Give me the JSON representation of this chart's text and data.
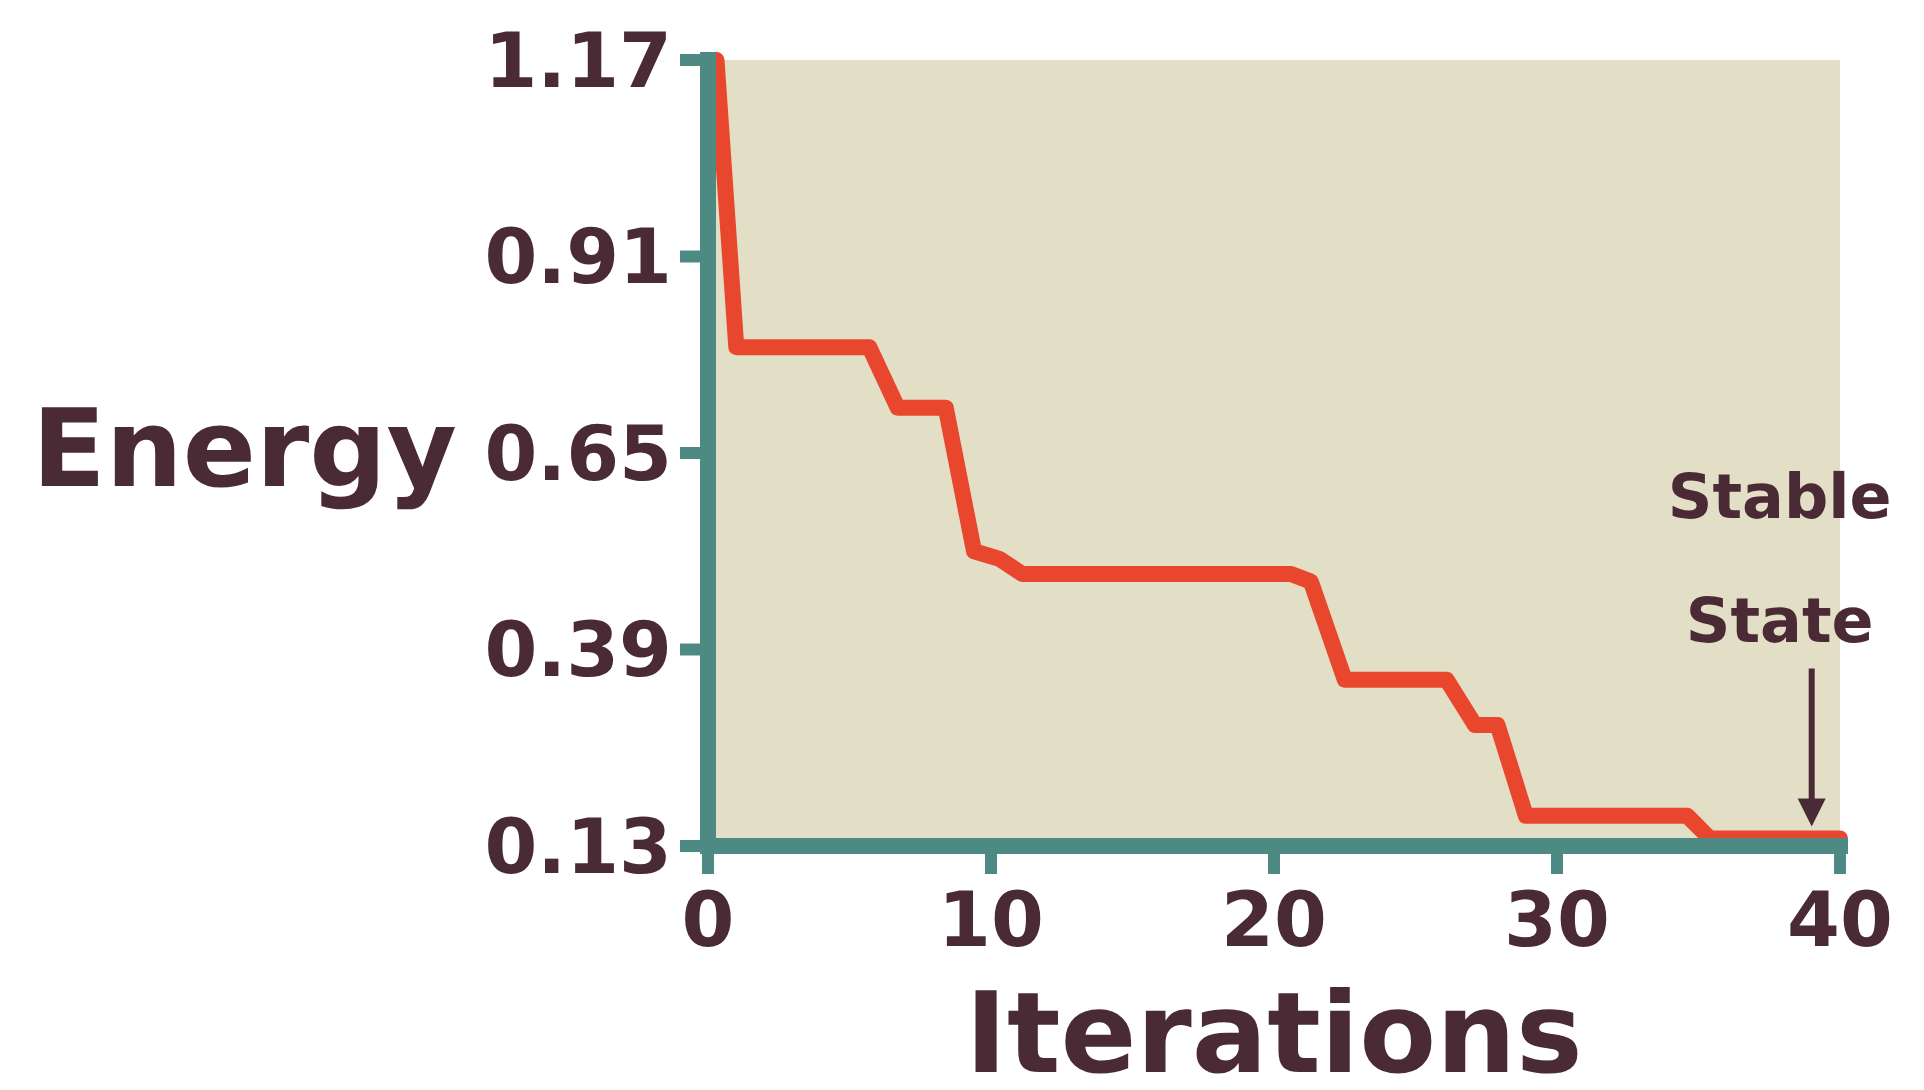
{
  "chart_data": {
    "type": "line",
    "xlabel": "Iterations",
    "ylabel": "Energy",
    "x": [
      0.3,
      1.0,
      5.7,
      6.7,
      8.4,
      9.4,
      10.3,
      11.1,
      20.6,
      21.3,
      22.5,
      26.1,
      27.1,
      27.9,
      28.9,
      34.6,
      35.4,
      40
    ],
    "series": [
      {
        "color": "#e8472e",
        "values": [
          1.17,
          0.79,
          0.79,
          0.71,
          0.71,
          0.52,
          0.51,
          0.49,
          0.49,
          0.48,
          0.35,
          0.35,
          0.29,
          0.29,
          0.17,
          0.17,
          0.14,
          0.14
        ]
      }
    ],
    "xlim": [
      0,
      40
    ],
    "xticks": [
      0,
      10,
      20,
      30,
      40
    ],
    "ylim": [
      0.13,
      1.17
    ],
    "yticks": [
      0.13,
      0.39,
      0.65,
      0.91,
      1.17
    ],
    "annotations": [
      {
        "text": "Stable State",
        "x": 39,
        "y": 0.14
      }
    ],
    "grid": false,
    "marker": "none",
    "line_style": "solid"
  }
}
